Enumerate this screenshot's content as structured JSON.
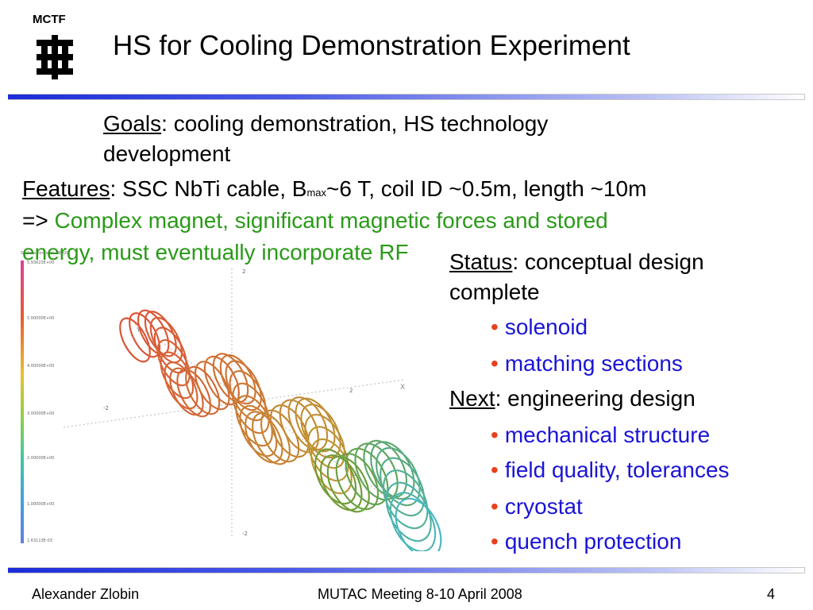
{
  "header": {
    "logo_text": "MCTF",
    "title": "HS for Cooling Demonstration Experiment"
  },
  "goals": {
    "label": "Goals",
    "text_line1": ": cooling demonstration, HS technology",
    "text_line2": "development"
  },
  "features": {
    "label": "Features",
    "text_before_sub": ": SSC NbTi cable, B",
    "subscript": "max",
    "text_after_sub": "~6 T, coil ID ~0.5m, length ~10m",
    "arrow": "=> ",
    "green_line1": "Complex magnet, significant magnetic forces and stored",
    "green_line2": "energy, must eventually incorporate RF"
  },
  "status": {
    "label": "Status",
    "text_line1": ": conceptual design",
    "text_line2": "complete",
    "bullet_char": "•",
    "items": [
      "solenoid",
      "matching sections"
    ]
  },
  "next": {
    "label": "Next",
    "text": ": engineering design",
    "items": [
      "mechanical structure",
      "field quality, tolerances",
      "cryostat",
      "quench protection"
    ]
  },
  "figure": {
    "header_text": "Surface contours: BMOD",
    "legend_values": [
      "5.93623E+00",
      "5.00000E+00",
      "4.00000E+00",
      "3.00000E+00",
      "2.00000E+00",
      "1.00000E+00",
      "1.63113E-03"
    ],
    "axis_labels": {
      "x": "X",
      "y": "Y",
      "z": "Z"
    },
    "tick_labels": {
      "z_top": "2",
      "z_bottom": "-2",
      "x_right": "2",
      "x_left": "-2"
    }
  },
  "footer": {
    "author": "Alexander Zlobin",
    "meeting": "MUTAC Meeting 8-10 April 2008",
    "page": "4"
  },
  "colors": {
    "green_text": "#2a9a18",
    "blue_text": "#1a14d6",
    "bullet": "#e8401c",
    "rule": "#1c2cd8"
  }
}
